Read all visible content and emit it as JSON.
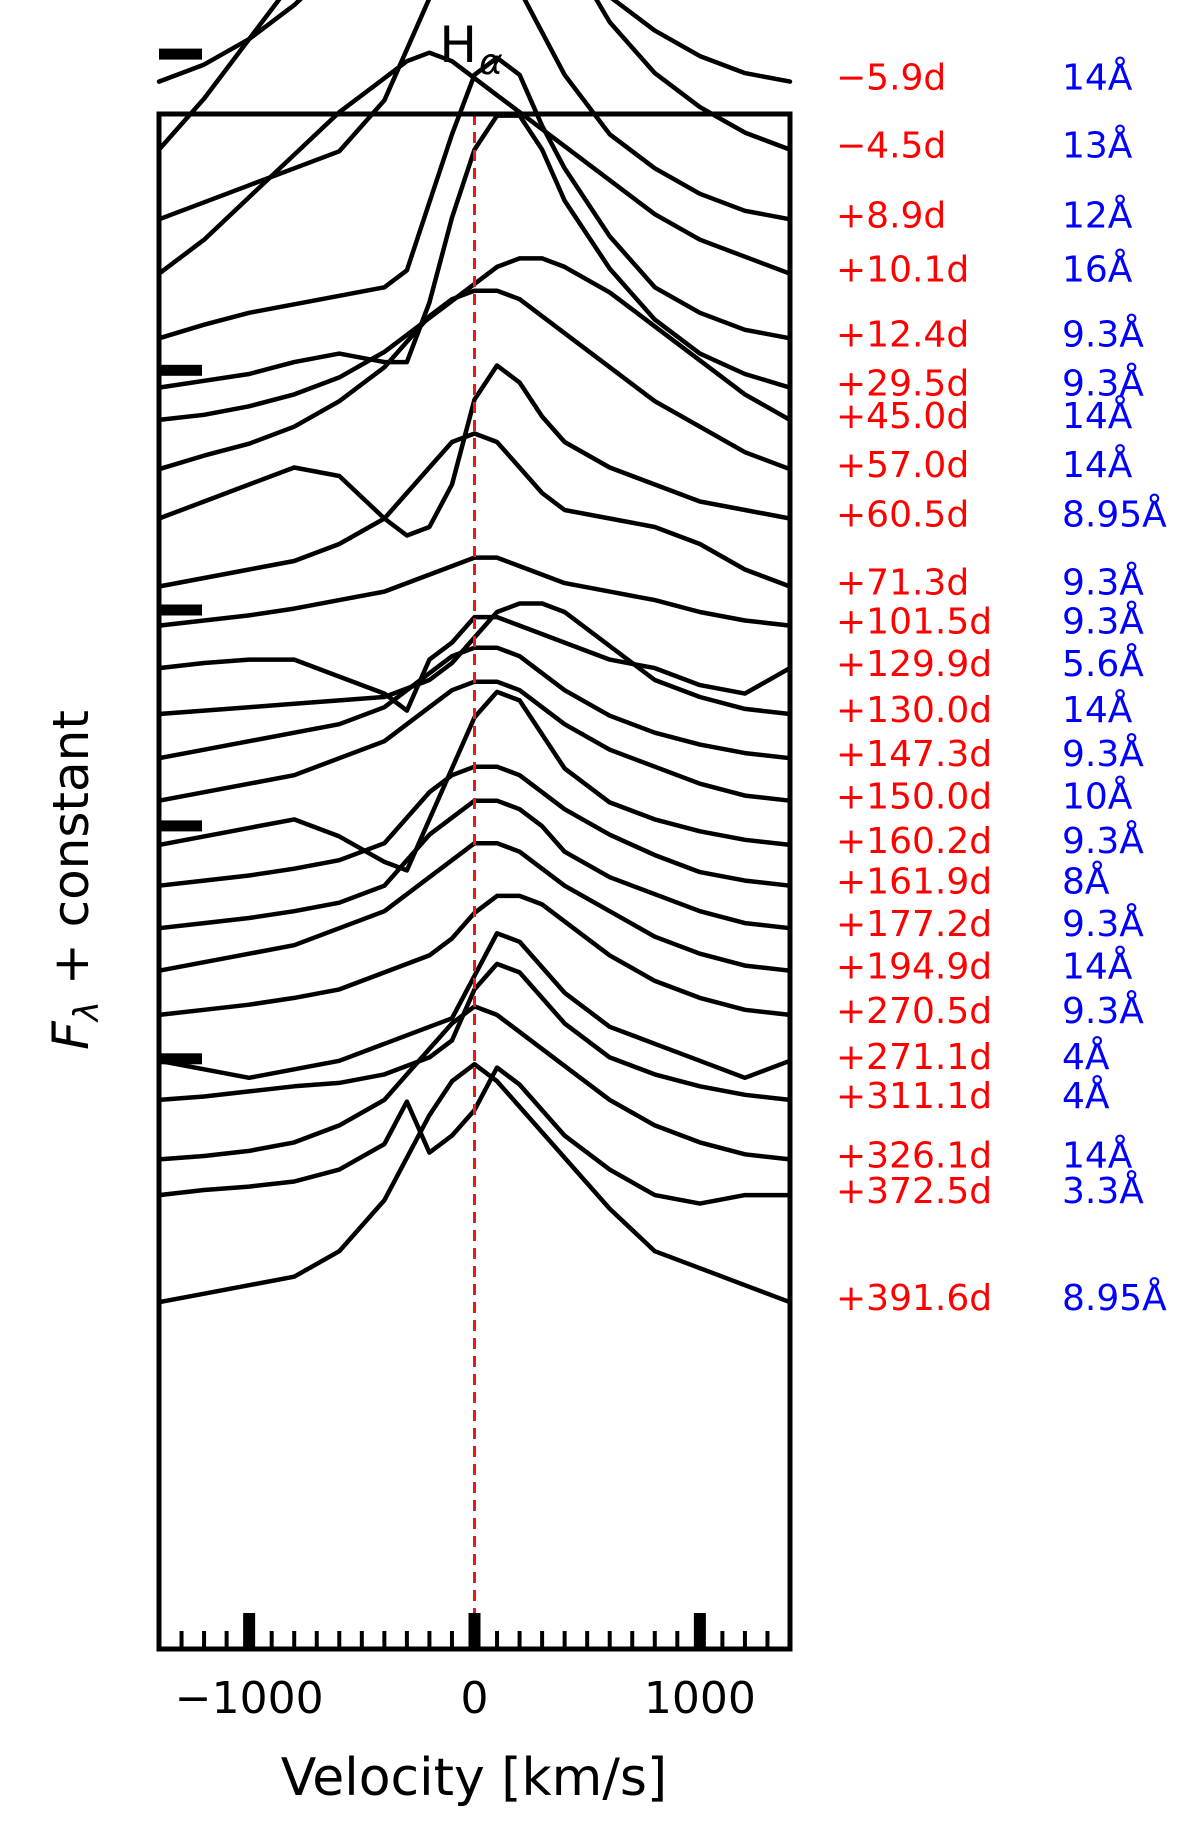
{
  "chart_data": {
    "type": "line",
    "title": "H",
    "title_subscript": "α",
    "xlabel": "Velocity [km/s]",
    "ylabel_main": "F",
    "ylabel_subscript": "λ",
    "ylabel_rest": " + constant",
    "xlim": [
      -1400,
      1400
    ],
    "xticks": [
      -1000,
      0,
      1000
    ],
    "xtick_labels": [
      "−1000",
      "0",
      "1000"
    ],
    "reference_line": {
      "x": 0,
      "color": "#e41a1c",
      "style": "dashed"
    },
    "colors": {
      "epoch": "#ff0000",
      "resolution": "#0000ff",
      "line": "#000000"
    },
    "x": [
      -1400,
      -1200,
      -1000,
      -800,
      -600,
      -400,
      -300,
      -200,
      -100,
      0,
      100,
      200,
      300,
      400,
      600,
      800,
      1000,
      1200,
      1400
    ],
    "series": [
      {
        "epoch": "−5.9d",
        "resolution": "14Å",
        "offset": 92.2,
        "values": [
          0.0,
          1.0,
          2.5,
          4.5,
          7.0,
          10.5,
          13.0,
          15.0,
          16.0,
          16.0,
          15.0,
          13.0,
          10.5,
          8.0,
          5.0,
          3.0,
          1.5,
          0.5,
          0.0
        ]
      },
      {
        "epoch": "−4.5d",
        "resolution": "13Å",
        "offset": 88.2,
        "values": [
          0.0,
          3.0,
          6.5,
          10.0,
          13.0,
          15.5,
          16.5,
          17.0,
          17.5,
          17.5,
          17.0,
          16.0,
          14.0,
          12.0,
          7.5,
          4.5,
          2.5,
          1.0,
          0.0
        ]
      },
      {
        "epoch": "+8.9d",
        "resolution": "12Å",
        "offset": 84.1,
        "values": [
          0.0,
          1.0,
          2.0,
          3.0,
          4.0,
          7.0,
          10.0,
          13.0,
          16.0,
          17.5,
          16.0,
          13.5,
          11.0,
          8.5,
          5.0,
          3.0,
          1.5,
          0.5,
          0.0
        ]
      },
      {
        "epoch": "+10.1d",
        "resolution": "16Å",
        "offset": 80.9,
        "values": [
          0.0,
          2.0,
          4.5,
          7.0,
          9.5,
          11.5,
          12.5,
          13.0,
          12.5,
          11.5,
          10.5,
          9.5,
          8.5,
          7.5,
          5.5,
          3.5,
          2.0,
          1.0,
          0.0
        ]
      },
      {
        "epoch": "+12.4d",
        "resolution": "9.3Å",
        "offset": 77.1,
        "values": [
          0.0,
          0.8,
          1.5,
          2.0,
          2.5,
          3.0,
          4.0,
          8.0,
          12.0,
          15.5,
          16.5,
          15.5,
          12.5,
          10.0,
          6.0,
          3.0,
          1.5,
          0.5,
          0.0
        ]
      },
      {
        "epoch": "+29.5d",
        "resolution": "9.3Å",
        "offset": 74.2,
        "values": [
          0.0,
          0.4,
          0.8,
          1.5,
          2.0,
          1.5,
          1.5,
          5.0,
          10.0,
          14.0,
          16.0,
          16.0,
          14.0,
          11.0,
          7.0,
          4.0,
          2.0,
          0.8,
          0.0
        ]
      },
      {
        "epoch": "+45.0d",
        "resolution": "14Å",
        "offset": 72.3,
        "values": [
          0.0,
          0.3,
          0.8,
          1.5,
          2.5,
          4.0,
          5.0,
          6.0,
          7.0,
          8.0,
          9.0,
          9.5,
          9.5,
          9.0,
          7.5,
          5.5,
          3.5,
          1.5,
          0.0
        ]
      },
      {
        "epoch": "+57.0d",
        "resolution": "14Å",
        "offset": 69.4,
        "values": [
          0.0,
          0.8,
          1.5,
          2.5,
          4.0,
          6.0,
          7.5,
          9.0,
          10.0,
          10.5,
          10.5,
          10.0,
          9.0,
          8.0,
          6.0,
          4.0,
          2.5,
          1.0,
          0.0
        ]
      },
      {
        "epoch": "+60.5d",
        "resolution": "8.95Å",
        "offset": 66.5,
        "values": [
          0.0,
          1.0,
          2.0,
          3.0,
          2.5,
          0.0,
          -1.0,
          -0.5,
          2.0,
          7.0,
          9.0,
          8.0,
          6.0,
          4.5,
          3.0,
          2.0,
          1.0,
          0.5,
          0.0
        ]
      },
      {
        "epoch": "+71.3d",
        "resolution": "9.3Å",
        "offset": 62.5,
        "values": [
          0.0,
          0.5,
          1.0,
          1.5,
          2.5,
          4.0,
          5.5,
          7.0,
          8.5,
          9.0,
          8.5,
          7.0,
          5.5,
          4.5,
          4.0,
          3.5,
          2.5,
          1.0,
          0.0
        ]
      },
      {
        "epoch": "+101.5d",
        "resolution": "9.3Å",
        "offset": 60.2,
        "values": [
          0.0,
          0.3,
          0.6,
          1.0,
          1.5,
          2.0,
          2.5,
          3.0,
          3.5,
          4.0,
          4.0,
          3.5,
          3.0,
          2.5,
          2.0,
          1.5,
          0.8,
          0.3,
          0.0
        ]
      },
      {
        "epoch": "+129.9d",
        "resolution": "5.6Å",
        "offset": 57.7,
        "values": [
          0.0,
          0.3,
          0.5,
          0.5,
          -0.5,
          -1.5,
          -2.5,
          0.5,
          1.5,
          3.0,
          3.0,
          2.5,
          2.0,
          1.5,
          0.5,
          0.0,
          -1.0,
          -1.5,
          0.0
        ]
      },
      {
        "epoch": "+130.0d",
        "resolution": "14Å",
        "offset": 55.0,
        "values": [
          0.0,
          0.2,
          0.4,
          0.6,
          0.8,
          1.0,
          1.5,
          2.0,
          3.0,
          4.5,
          6.0,
          6.5,
          6.5,
          6.0,
          4.0,
          2.0,
          1.0,
          0.3,
          0.0
        ]
      },
      {
        "epoch": "+147.3d",
        "resolution": "9.3Å",
        "offset": 52.4,
        "values": [
          0.0,
          0.5,
          1.0,
          1.5,
          2.0,
          3.0,
          4.0,
          5.0,
          6.0,
          6.5,
          6.5,
          6.0,
          5.0,
          4.0,
          2.5,
          1.5,
          0.8,
          0.3,
          0.0
        ]
      },
      {
        "epoch": "+150.0d",
        "resolution": "10Å",
        "offset": 49.9,
        "values": [
          0.0,
          0.5,
          1.0,
          1.5,
          2.5,
          3.5,
          4.5,
          5.5,
          6.5,
          7.0,
          7.0,
          6.5,
          5.5,
          4.5,
          3.0,
          2.0,
          1.0,
          0.3,
          0.0
        ]
      },
      {
        "epoch": "+160.2d",
        "resolution": "9.3Å",
        "offset": 47.3,
        "values": [
          0.0,
          0.5,
          1.0,
          1.5,
          0.5,
          -1.0,
          -1.5,
          1.5,
          4.5,
          7.5,
          9.0,
          8.5,
          6.5,
          4.5,
          2.5,
          1.5,
          0.8,
          0.3,
          0.0
        ]
      },
      {
        "epoch": "+161.9d",
        "resolution": "8Å",
        "offset": 44.9,
        "values": [
          0.0,
          0.3,
          0.6,
          1.0,
          1.5,
          2.5,
          4.0,
          5.5,
          6.5,
          7.0,
          7.0,
          6.5,
          5.5,
          4.5,
          3.0,
          1.8,
          0.8,
          0.3,
          0.0
        ]
      },
      {
        "epoch": "+177.2d",
        "resolution": "9.3Å",
        "offset": 42.4,
        "values": [
          0.0,
          0.3,
          0.6,
          1.0,
          1.5,
          2.5,
          4.0,
          5.5,
          6.5,
          7.5,
          7.5,
          7.0,
          6.0,
          4.5,
          3.0,
          2.0,
          1.0,
          0.3,
          0.0
        ]
      },
      {
        "epoch": "+194.9d",
        "resolution": "14Å",
        "offset": 39.9,
        "values": [
          0.0,
          0.5,
          1.0,
          1.5,
          2.5,
          3.5,
          4.5,
          5.5,
          6.5,
          7.5,
          7.5,
          7.0,
          6.0,
          5.0,
          3.5,
          2.0,
          1.0,
          0.3,
          0.0
        ]
      },
      {
        "epoch": "+270.5d",
        "resolution": "9.3Å",
        "offset": 37.3,
        "values": [
          0.0,
          0.3,
          0.6,
          1.0,
          1.5,
          2.5,
          3.0,
          3.5,
          4.5,
          6.0,
          7.0,
          7.0,
          6.5,
          5.5,
          3.5,
          2.0,
          1.0,
          0.3,
          0.0
        ]
      },
      {
        "epoch": "+271.1d",
        "resolution": "4Å",
        "offset": 34.6,
        "values": [
          0.0,
          -0.5,
          -1.0,
          -0.5,
          0.0,
          1.0,
          1.5,
          2.0,
          2.5,
          5.0,
          7.5,
          7.0,
          5.5,
          4.0,
          2.0,
          1.0,
          0.0,
          -1.0,
          0.0
        ]
      },
      {
        "epoch": "+311.1d",
        "resolution": "4Å",
        "offset": 32.3,
        "values": [
          0.0,
          0.2,
          0.5,
          0.8,
          1.0,
          1.5,
          2.0,
          2.5,
          3.5,
          6.5,
          8.0,
          7.5,
          6.0,
          4.5,
          2.5,
          1.5,
          0.8,
          0.3,
          0.0
        ]
      },
      {
        "epoch": "+326.1d",
        "resolution": "14Å",
        "offset": 28.8,
        "values": [
          0.0,
          0.2,
          0.5,
          1.0,
          2.0,
          3.5,
          5.0,
          6.5,
          8.0,
          9.0,
          8.5,
          7.5,
          6.5,
          5.5,
          3.5,
          2.0,
          1.0,
          0.3,
          0.0
        ]
      },
      {
        "epoch": "+372.5d",
        "resolution": "3.3Å",
        "offset": 26.7,
        "values": [
          0.0,
          0.3,
          0.5,
          0.8,
          1.5,
          3.0,
          5.5,
          2.5,
          3.5,
          5.0,
          7.5,
          6.5,
          5.0,
          3.5,
          1.5,
          0.0,
          -0.5,
          0.0,
          0.0
        ]
      },
      {
        "epoch": "+391.6d",
        "resolution": "8.95Å",
        "offset": 20.4,
        "values": [
          0.0,
          0.5,
          1.0,
          1.5,
          3.0,
          6.0,
          8.5,
          11.0,
          13.0,
          14.0,
          13.0,
          11.5,
          10.0,
          8.5,
          5.5,
          3.0,
          2.0,
          1.0,
          0.0
        ]
      }
    ]
  }
}
